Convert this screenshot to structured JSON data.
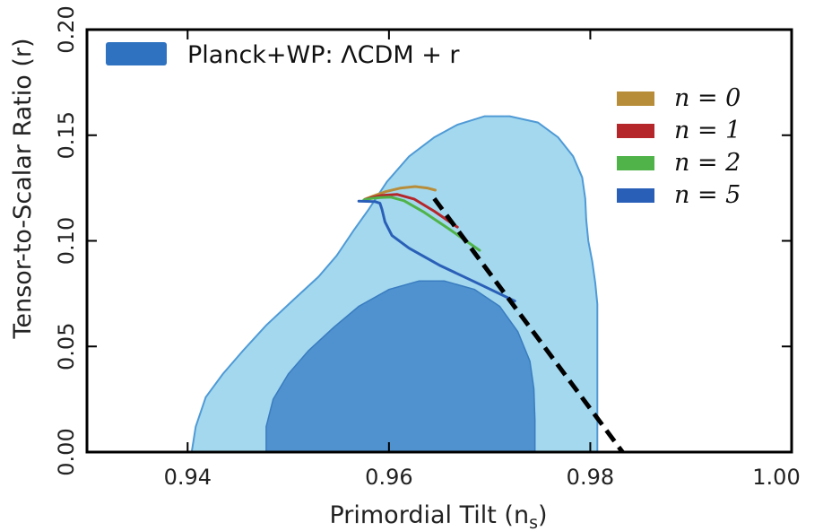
{
  "chart_data": {
    "type": "area",
    "xlabel": "Primordial Tilt (n",
    "xlabel_sub": "s",
    "xlabel_close": ")",
    "ylabel": "Tensor-to-Scalar Ratio (r)",
    "xlim": [
      0.93,
      1.0
    ],
    "ylim": [
      0.0,
      0.2
    ],
    "xticks": [
      0.94,
      0.96,
      0.98,
      1.0
    ],
    "xtick_labels": [
      "0.94",
      "0.96",
      "0.98",
      "1.00"
    ],
    "yticks": [
      0.0,
      0.05,
      0.1,
      0.15,
      0.2
    ],
    "ytick_labels": [
      "0.00",
      "0.05",
      "0.10",
      "0.15",
      "0.20"
    ],
    "contours": {
      "label": "Planck+WP: ΛCDM + r",
      "color_outer": "#a3d8ee",
      "color_outer_edge": "#4f9ad6",
      "color_inner": "#4f92cf",
      "color_inner_edge": "#3a7cc0",
      "legend_color": "#2f72c0",
      "outer": [
        [
          0.9404,
          0.0
        ],
        [
          0.9408,
          0.012
        ],
        [
          0.9418,
          0.026
        ],
        [
          0.9435,
          0.037
        ],
        [
          0.9455,
          0.048
        ],
        [
          0.9478,
          0.06
        ],
        [
          0.9505,
          0.072
        ],
        [
          0.953,
          0.083
        ],
        [
          0.9548,
          0.093
        ],
        [
          0.9565,
          0.105
        ],
        [
          0.958,
          0.115
        ],
        [
          0.9598,
          0.128
        ],
        [
          0.962,
          0.14
        ],
        [
          0.9645,
          0.149
        ],
        [
          0.9668,
          0.155
        ],
        [
          0.9695,
          0.159
        ],
        [
          0.972,
          0.159
        ],
        [
          0.9748,
          0.156
        ],
        [
          0.9768,
          0.149
        ],
        [
          0.9783,
          0.14
        ],
        [
          0.9792,
          0.13
        ],
        [
          0.9795,
          0.12
        ],
        [
          0.9796,
          0.11
        ],
        [
          0.9798,
          0.1
        ],
        [
          0.9802,
          0.09
        ],
        [
          0.9805,
          0.08
        ],
        [
          0.9807,
          0.07
        ],
        [
          0.9807,
          0.06
        ],
        [
          0.9807,
          0.04
        ],
        [
          0.9807,
          0.02
        ],
        [
          0.9807,
          0.0
        ]
      ],
      "inner": [
        [
          0.9478,
          0.0
        ],
        [
          0.9478,
          0.012
        ],
        [
          0.9485,
          0.025
        ],
        [
          0.95,
          0.037
        ],
        [
          0.952,
          0.048
        ],
        [
          0.9545,
          0.059
        ],
        [
          0.957,
          0.069
        ],
        [
          0.96,
          0.077
        ],
        [
          0.963,
          0.081
        ],
        [
          0.9655,
          0.081
        ],
        [
          0.9685,
          0.077
        ],
        [
          0.971,
          0.069
        ],
        [
          0.9728,
          0.057
        ],
        [
          0.974,
          0.043
        ],
        [
          0.9744,
          0.03
        ],
        [
          0.9745,
          0.015
        ],
        [
          0.9745,
          0.0
        ]
      ]
    },
    "series": [
      {
        "name": "n = 0",
        "color": "#b88d3a",
        "x": [
          0.9576,
          0.9585,
          0.9597,
          0.9612,
          0.9626,
          0.9638,
          0.9646
        ],
        "y": [
          0.1197,
          0.1213,
          0.1233,
          0.125,
          0.1257,
          0.125,
          0.124
        ]
      },
      {
        "name": "n = 1",
        "color": "#b5262b",
        "x": [
          0.9576,
          0.9583,
          0.9593,
          0.9608,
          0.9625,
          0.9645,
          0.9668
        ],
        "y": [
          0.1195,
          0.1205,
          0.1215,
          0.122,
          0.1198,
          0.114,
          0.1065
        ]
      },
      {
        "name": "n = 2",
        "color": "#4fb349",
        "x": [
          0.9575,
          0.9582,
          0.9591,
          0.9602,
          0.9615,
          0.9635,
          0.966,
          0.969
        ],
        "y": [
          0.1193,
          0.12,
          0.1205,
          0.1207,
          0.119,
          0.1135,
          0.1055,
          0.0955
        ]
      },
      {
        "name": "n = 5",
        "color": "#2a5fb8",
        "x": [
          0.957,
          0.9578,
          0.9586,
          0.9591,
          0.9593,
          0.9596,
          0.9603,
          0.962,
          0.965,
          0.969,
          0.9725
        ],
        "y": [
          0.1188,
          0.1187,
          0.1186,
          0.1178,
          0.115,
          0.109,
          0.1025,
          0.0965,
          0.0885,
          0.0795,
          0.0715
        ]
      }
    ],
    "dashed_line": {
      "color": "#000000",
      "x": [
        0.9645,
        0.9832
      ],
      "y": [
        0.12,
        0.0
      ]
    },
    "legend_position": "top-right"
  }
}
